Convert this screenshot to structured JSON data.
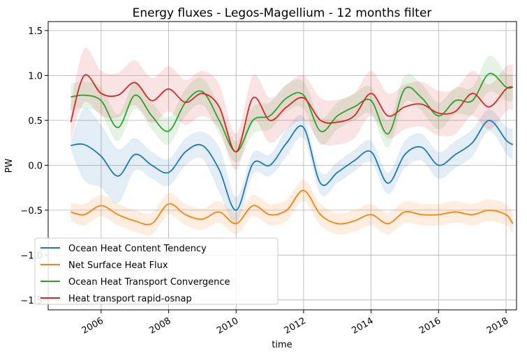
{
  "chart_data": {
    "type": "line",
    "title": "Energy fluxes - Legos-Magellium - 12 months filter",
    "x_label": "time",
    "y_label": "PW",
    "x": [
      2005.1,
      2005.5,
      2006.0,
      2006.5,
      2007.0,
      2007.5,
      2008.0,
      2008.5,
      2009.0,
      2009.5,
      2010.0,
      2010.5,
      2011.0,
      2011.5,
      2012.0,
      2012.5,
      2013.0,
      2013.5,
      2014.0,
      2014.5,
      2015.0,
      2015.5,
      2016.0,
      2016.5,
      2017.0,
      2017.5,
      2018.0,
      2018.2
    ],
    "series": [
      {
        "name": "Ocean Heat Content Tendency",
        "color": "#1f77b4",
        "values": [
          0.22,
          0.23,
          0.1,
          -0.12,
          0.12,
          0.0,
          -0.08,
          0.15,
          0.22,
          -0.05,
          -0.5,
          0.02,
          0.0,
          0.25,
          0.42,
          -0.2,
          -0.08,
          0.05,
          0.15,
          -0.2,
          0.12,
          0.2,
          0.0,
          0.12,
          0.25,
          0.5,
          0.28,
          0.23
        ],
        "errors": [
          0.05,
          0.4,
          0.35,
          0.3,
          0.18,
          0.15,
          0.15,
          0.15,
          0.15,
          0.25,
          0.15,
          0.12,
          0.12,
          0.15,
          0.12,
          0.12,
          0.12,
          0.12,
          0.12,
          0.12,
          0.15,
          0.15,
          0.15,
          0.15,
          0.15,
          0.12,
          0.15,
          0.18
        ]
      },
      {
        "name": "Net Surface Heat Flux",
        "color": "#ff7f0e",
        "values": [
          -0.52,
          -0.55,
          -0.45,
          -0.55,
          -0.62,
          -0.65,
          -0.43,
          -0.55,
          -0.6,
          -0.52,
          -0.65,
          -0.45,
          -0.55,
          -0.5,
          -0.28,
          -0.55,
          -0.65,
          -0.62,
          -0.55,
          -0.65,
          -0.52,
          -0.55,
          -0.55,
          -0.52,
          -0.55,
          -0.5,
          -0.55,
          -0.65
        ],
        "errors": [
          0.1,
          0.12,
          0.12,
          0.12,
          0.12,
          0.12,
          0.12,
          0.12,
          0.12,
          0.12,
          0.12,
          0.12,
          0.12,
          0.12,
          0.12,
          0.12,
          0.12,
          0.12,
          0.12,
          0.12,
          0.12,
          0.12,
          0.12,
          0.12,
          0.12,
          0.12,
          0.12,
          0.12
        ]
      },
      {
        "name": "Ocean Heat Transport Convergence",
        "color": "#2ca02c",
        "values": [
          0.76,
          0.78,
          0.72,
          0.42,
          0.78,
          0.55,
          0.38,
          0.7,
          0.82,
          0.5,
          0.15,
          0.5,
          0.55,
          0.75,
          0.78,
          0.38,
          0.55,
          0.65,
          0.72,
          0.35,
          0.85,
          0.75,
          0.55,
          0.72,
          0.72,
          1.02,
          0.87,
          0.87
        ],
        "errors": [
          0.15,
          0.15,
          0.15,
          0.15,
          0.15,
          0.15,
          0.15,
          0.15,
          0.15,
          0.15,
          0.12,
          0.15,
          0.15,
          0.15,
          0.15,
          0.15,
          0.15,
          0.15,
          0.15,
          0.15,
          0.15,
          0.15,
          0.15,
          0.15,
          0.15,
          0.2,
          0.15,
          0.15
        ]
      },
      {
        "name": "Heat transport rapid-osnap",
        "color": "#d62728",
        "values": [
          0.48,
          1.0,
          0.8,
          0.78,
          0.92,
          0.72,
          0.85,
          0.7,
          0.8,
          0.65,
          0.15,
          0.75,
          0.5,
          0.65,
          0.75,
          0.5,
          0.48,
          0.55,
          0.8,
          0.55,
          0.65,
          0.68,
          0.58,
          0.6,
          0.8,
          0.65,
          0.85,
          0.87
        ],
        "errors": [
          0.2,
          0.3,
          0.25,
          0.25,
          0.25,
          0.25,
          0.25,
          0.25,
          0.25,
          0.25,
          0.2,
          0.25,
          0.25,
          0.25,
          0.25,
          0.25,
          0.25,
          0.25,
          0.25,
          0.25,
          0.25,
          0.25,
          0.25,
          0.25,
          0.25,
          0.25,
          0.25,
          0.25
        ]
      }
    ],
    "xlim": [
      2004.43,
      2018.31
    ],
    "xticks": [
      2006,
      2008,
      2010,
      2012,
      2014,
      2016,
      2018
    ],
    "ylim": [
      -1.61,
      1.6
    ],
    "yticks": [
      {
        "value": -1.5,
        "label": "−1.5"
      },
      {
        "value": -1.0,
        "label": "−1.0"
      },
      {
        "value": -0.5,
        "label": "−0.5"
      },
      {
        "value": 0.0,
        "label": "0.0"
      },
      0.5,
      {
        "value": 1.0,
        "label": "1.0"
      },
      1.5
    ],
    "grid": true,
    "legend": "lower left"
  }
}
